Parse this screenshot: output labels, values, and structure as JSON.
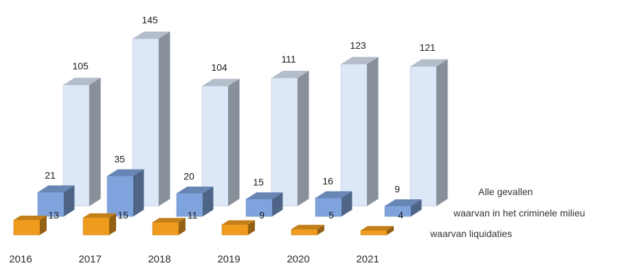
{
  "chart_data": {
    "type": "bar",
    "categories": [
      "2016",
      "2017",
      "2018",
      "2019",
      "2020",
      "2021"
    ],
    "series": [
      {
        "name": "Alle gevallen",
        "values": [
          105,
          145,
          104,
          111,
          123,
          121
        ],
        "color": "#dce8f7"
      },
      {
        "name": "waarvan in het criminele milieu",
        "values": [
          21,
          35,
          20,
          15,
          16,
          9
        ],
        "color": "#7fa3dc"
      },
      {
        "name": "waarvan liquidaties",
        "values": [
          13,
          15,
          11,
          9,
          5,
          4
        ],
        "color": "#ee9b1e"
      }
    ],
    "title": "",
    "xlabel": "",
    "ylabel": "",
    "ylim": [
      0,
      150
    ],
    "grid": false,
    "legend": "right"
  }
}
